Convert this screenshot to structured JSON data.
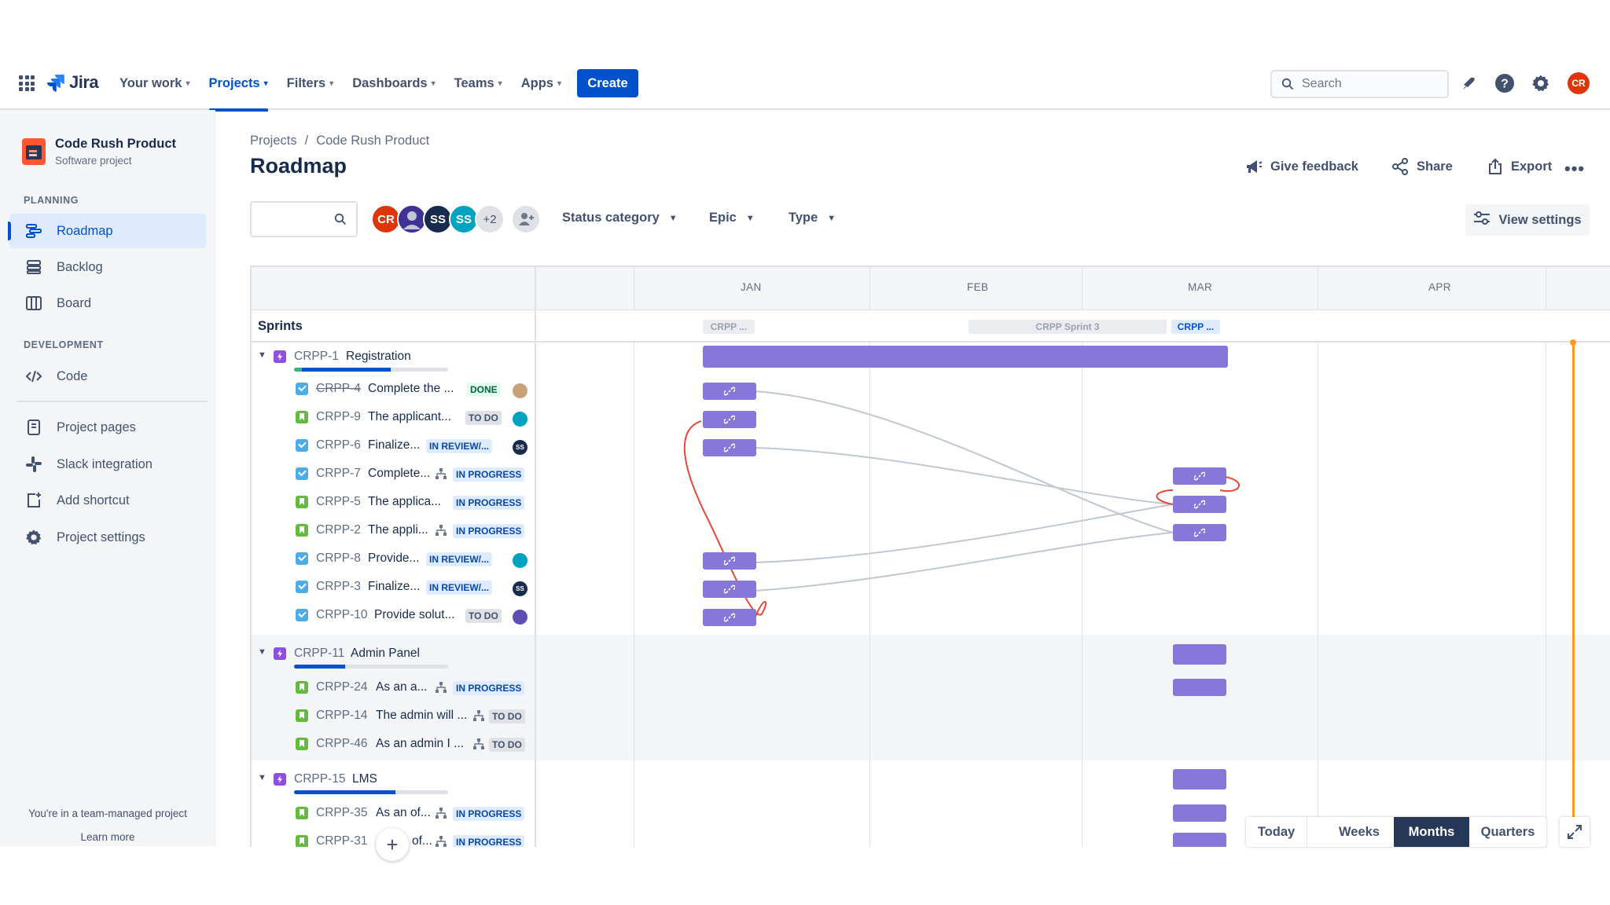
{
  "topnav": {
    "logo": "Jira",
    "items": [
      {
        "label": "Your work",
        "active": false
      },
      {
        "label": "Projects",
        "active": true
      },
      {
        "label": "Filters",
        "active": false
      },
      {
        "label": "Dashboards",
        "active": false
      },
      {
        "label": "Teams",
        "active": false
      },
      {
        "label": "Apps",
        "active": false
      }
    ],
    "create_label": "Create",
    "search_placeholder": "Search",
    "user_initials": "CR",
    "accent": "#0052cc"
  },
  "sidebar": {
    "project_name": "Code Rush Product",
    "project_type": "Software project",
    "planning_label": "PLANNING",
    "development_label": "DEVELOPMENT",
    "items": [
      {
        "label": "Roadmap",
        "icon": "roadmap-icon",
        "active": true
      },
      {
        "label": "Backlog",
        "icon": "backlog-icon",
        "active": false
      },
      {
        "label": "Board",
        "icon": "board-icon",
        "active": false
      },
      {
        "label": "Code",
        "icon": "code-icon",
        "active": false
      },
      {
        "label": "Project pages",
        "icon": "pages-icon",
        "active": false
      },
      {
        "label": "Slack integration",
        "icon": "slack-icon",
        "active": false
      },
      {
        "label": "Add shortcut",
        "icon": "add-shortcut-icon",
        "active": false
      },
      {
        "label": "Project settings",
        "icon": "gear-icon",
        "active": false
      }
    ],
    "footer_text": "You're in a team-managed project",
    "footer_link": "Learn more"
  },
  "header": {
    "breadcrumb": [
      "Projects",
      "Code Rush Product"
    ],
    "title": "Roadmap",
    "actions": {
      "feedback": "Give feedback",
      "share": "Share",
      "export": "Export"
    }
  },
  "filters": {
    "avatars": [
      {
        "initials": "CR",
        "color": "#de350b"
      },
      {
        "initials": "",
        "color": "#5e4db2"
      },
      {
        "initials": "SS",
        "color": "#172b4d"
      },
      {
        "initials": "SS",
        "color": "#00a3bf"
      }
    ],
    "more_count": "+2",
    "dropdowns": [
      "Status category",
      "Epic",
      "Type"
    ],
    "view_settings": "View settings"
  },
  "timeline": {
    "months": [
      "JAN",
      "FEB",
      "MAR",
      "APR"
    ],
    "sprints_label": "Sprints",
    "sprints": [
      {
        "label": "CRPP ...",
        "active": false
      },
      {
        "label": "CRPP Sprint 3",
        "active": false
      },
      {
        "label": "CRPP ...",
        "active": true
      }
    ]
  },
  "epics": [
    {
      "key": "CRPP-1",
      "name": "Registration",
      "progress": {
        "done": 0.05,
        "in_progress": 0.58
      },
      "issues": [
        {
          "key": "CRPP-4",
          "summary": "Complete the ...",
          "type": "task",
          "status": "DONE",
          "strike": true,
          "child": false
        },
        {
          "key": "CRPP-9",
          "summary": "The applicant...",
          "type": "story",
          "status": "TO DO",
          "strike": false,
          "child": false
        },
        {
          "key": "CRPP-6",
          "summary": "Finalize...",
          "type": "task",
          "status": "IN REVIEW/...",
          "strike": false,
          "child": false
        },
        {
          "key": "CRPP-7",
          "summary": "Complete...",
          "type": "task",
          "status": "IN PROGRESS",
          "strike": false,
          "child": true
        },
        {
          "key": "CRPP-5",
          "summary": "The applica...",
          "type": "story",
          "status": "IN PROGRESS",
          "strike": false,
          "child": false
        },
        {
          "key": "CRPP-2",
          "summary": "The appli...",
          "type": "story",
          "status": "IN PROGRESS",
          "strike": false,
          "child": true
        },
        {
          "key": "CRPP-8",
          "summary": "Provide...",
          "type": "task",
          "status": "IN REVIEW/...",
          "strike": false,
          "child": false
        },
        {
          "key": "CRPP-3",
          "summary": "Finalize...",
          "type": "task",
          "status": "IN REVIEW/...",
          "strike": false,
          "child": false
        },
        {
          "key": "CRPP-10",
          "summary": "Provide solut...",
          "type": "task",
          "status": "TO DO",
          "strike": false,
          "child": false
        }
      ]
    },
    {
      "key": "CRPP-11",
      "name": "Admin Panel",
      "progress": {
        "done": 0,
        "in_progress": 0.33
      },
      "issues": [
        {
          "key": "CRPP-24",
          "summary": "As an a...",
          "type": "story",
          "status": "IN PROGRESS",
          "strike": false,
          "child": true
        },
        {
          "key": "CRPP-14",
          "summary": "The admin will ...",
          "type": "story",
          "status": "TO DO",
          "strike": false,
          "child": true
        },
        {
          "key": "CRPP-46",
          "summary": "As an admin I ...",
          "type": "story",
          "status": "TO DO",
          "strike": false,
          "child": true
        }
      ]
    },
    {
      "key": "CRPP-15",
      "name": "LMS",
      "progress": {
        "done": 0,
        "in_progress": 0.66
      },
      "issues": [
        {
          "key": "CRPP-35",
          "summary": "As an of...",
          "type": "story",
          "status": "IN PROGRESS",
          "strike": false,
          "child": true
        },
        {
          "key": "CRPP-31",
          "summary": "of...",
          "type": "story",
          "status": "IN PROGRESS",
          "strike": false,
          "child": true
        }
      ]
    }
  ],
  "zoom": {
    "today": "Today",
    "options": [
      "Weeks",
      "Months",
      "Quarters"
    ],
    "selected": "Months"
  },
  "colors": {
    "bar": "#8777d9",
    "today_line": "#ff991f",
    "dependency_ok": "#c1c7d0",
    "dependency_conflict": "#e5493a"
  }
}
